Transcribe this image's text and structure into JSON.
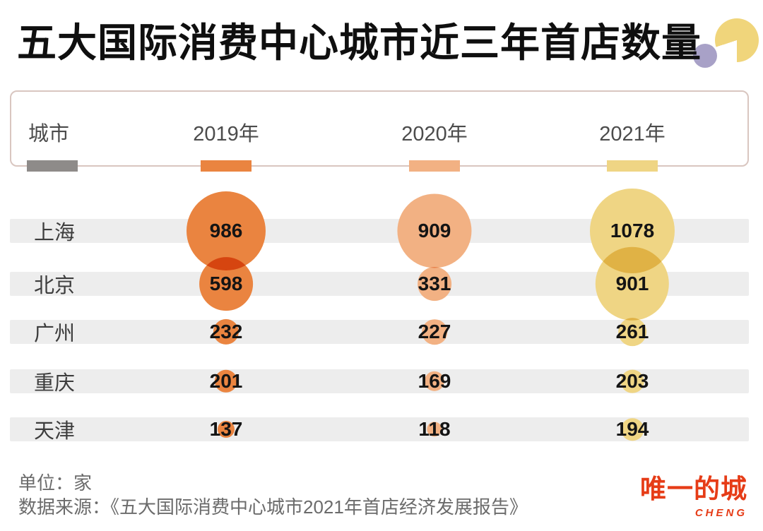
{
  "title": "五大国际消费中心城市近三年首店数量",
  "header": {
    "city": "城市",
    "years": [
      "2019年",
      "2020年",
      "2021年"
    ]
  },
  "chart_data": {
    "type": "bubble",
    "title": "五大国际消费中心城市近三年首店数量",
    "categories": [
      "2019年",
      "2020年",
      "2021年"
    ],
    "rows": [
      {
        "city": "上海",
        "values": [
          986,
          909,
          1078
        ]
      },
      {
        "city": "北京",
        "values": [
          598,
          331,
          901
        ]
      },
      {
        "city": "广州",
        "values": [
          232,
          227,
          261
        ]
      },
      {
        "city": "重庆",
        "values": [
          201,
          169,
          203
        ]
      },
      {
        "city": "天津",
        "values": [
          137,
          118,
          194
        ]
      }
    ],
    "series_colors": [
      "#ea8440",
      "#f2b183",
      "#efd584"
    ],
    "city_swatch_color": "#8e8b89",
    "row_band_color": "#ededed",
    "unit": "家"
  },
  "footer": {
    "unit": "单位：家",
    "source": "数据来源：《五大国际消费中心城市2021年首店经济发展报告》"
  },
  "logo": {
    "text": "唯一的城",
    "sub": "CHENG"
  }
}
